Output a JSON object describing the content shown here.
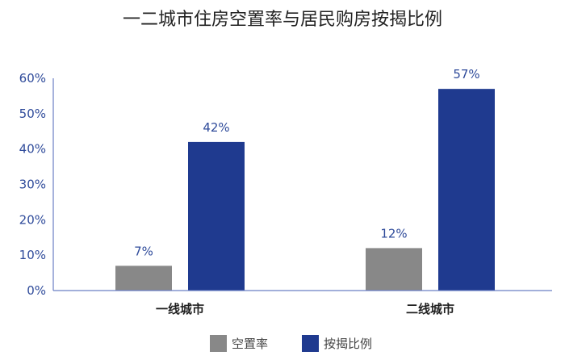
{
  "chart_data": {
    "type": "bar",
    "title": "一二城市住房空置率与居民购房按揭比例",
    "categories": [
      "一线城市",
      "二线城市"
    ],
    "series": [
      {
        "name": "空置率",
        "values": [
          7,
          12
        ],
        "labels": [
          "7%",
          "12%"
        ],
        "color": "#888888"
      },
      {
        "name": "按揭比例",
        "values": [
          42,
          57
        ],
        "labels": [
          "42%",
          "57%"
        ],
        "color": "#1f3a8f"
      }
    ],
    "y_ticks": [
      "0%",
      "10%",
      "20%",
      "30%",
      "40%",
      "50%",
      "60%"
    ],
    "ylim": [
      0,
      60
    ],
    "axis_color": "#6b7fc4",
    "tick_color": "#2e4a9a",
    "legend_position": "bottom-center",
    "grid": false
  }
}
